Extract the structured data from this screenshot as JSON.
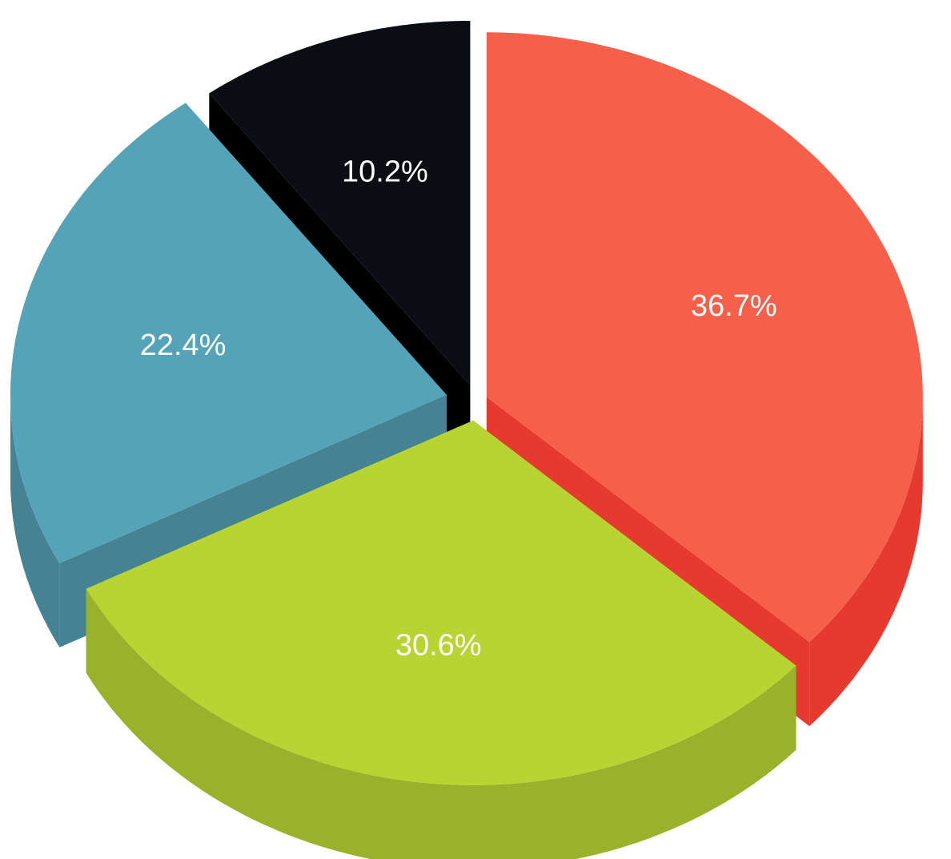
{
  "chart_data": {
    "type": "pie",
    "style": "3d-exploded",
    "legend": "none",
    "slices": [
      {
        "label": "36.7%",
        "value": 36.7,
        "color": "#F6604B",
        "side_color": "#E63A2F"
      },
      {
        "label": "30.6%",
        "value": 30.6,
        "color": "#B8D433",
        "side_color": "#9AB12B"
      },
      {
        "label": "22.4%",
        "value": 22.4,
        "color": "#55A3B8",
        "side_color": "#448294"
      },
      {
        "label": "10.2%",
        "value": 10.2,
        "color": "#0A0D14",
        "side_color": "#000000"
      }
    ]
  }
}
